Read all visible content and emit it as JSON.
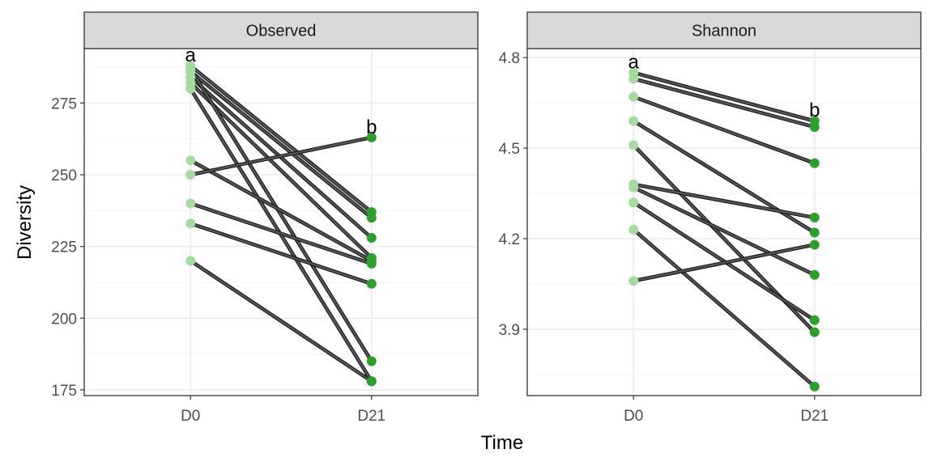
{
  "colors": {
    "d0_point": "#a6dba0",
    "d21_point": "#2ca02c",
    "line": "#555555",
    "line_outline": "#111111",
    "strip_bg": "#d9d9d9",
    "grid_major": "#ebebeb",
    "grid_minor": "#f4f4f4"
  },
  "chart_data": {
    "type": "line",
    "xlabel": "Time",
    "ylabel": "Diversity",
    "categories": [
      "D0",
      "D21"
    ],
    "grid": true,
    "panels": [
      {
        "name": "Observed",
        "ylim": [
          173,
          294
        ],
        "yticks": [
          175,
          200,
          225,
          250,
          275
        ],
        "tick_labels": [
          "175",
          "200",
          "225",
          "250",
          "275"
        ],
        "pairs": [
          [
            288,
            237
          ],
          [
            286,
            235
          ],
          [
            284,
            228
          ],
          [
            282,
            221
          ],
          [
            280,
            178
          ],
          [
            287,
            185
          ],
          [
            255,
            220
          ],
          [
            250,
            263
          ],
          [
            240,
            219
          ],
          [
            233,
            212
          ],
          [
            220,
            178
          ]
        ],
        "significance": {
          "D0": "a",
          "D21": "b"
        },
        "sig_y": {
          "D0": 290,
          "D21": 265
        }
      },
      {
        "name": "Shannon",
        "ylim": [
          3.68,
          4.83
        ],
        "yticks": [
          3.9,
          4.2,
          4.5,
          4.8
        ],
        "tick_labels": [
          "3.9",
          "4.2",
          "4.5",
          "4.8"
        ],
        "pairs": [
          [
            4.75,
            4.59
          ],
          [
            4.73,
            4.57
          ],
          [
            4.67,
            4.45
          ],
          [
            4.59,
            4.22
          ],
          [
            4.51,
            3.89
          ],
          [
            4.38,
            4.27
          ],
          [
            4.37,
            4.08
          ],
          [
            4.32,
            3.93
          ],
          [
            4.23,
            3.71
          ],
          [
            4.06,
            4.18
          ]
        ],
        "significance": {
          "D0": "a",
          "D21": "b"
        },
        "sig_y": {
          "D0": 4.77,
          "D21": 4.61
        }
      }
    ]
  }
}
